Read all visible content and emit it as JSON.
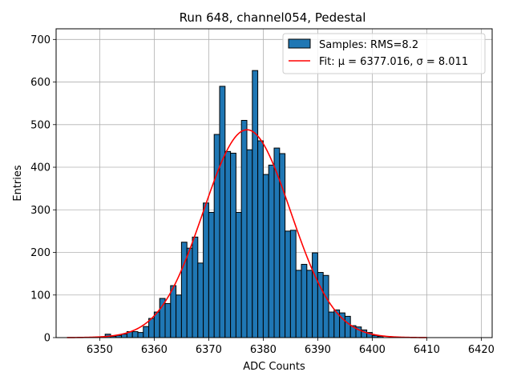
{
  "chart_data": {
    "type": "bar",
    "title": "Run 648, channel054, Pedestal",
    "xlabel": "ADC Counts",
    "ylabel": "Entries",
    "xlim": [
      6342,
      6422
    ],
    "ylim": [
      0,
      725
    ],
    "xticks": [
      6350,
      6360,
      6370,
      6380,
      6390,
      6400,
      6410,
      6420
    ],
    "yticks": [
      0,
      100,
      200,
      300,
      400,
      500,
      600,
      700
    ],
    "grid": true,
    "legend_position": "top-right",
    "bin_width": 1,
    "series": [
      {
        "name": "Samples: RMS=8.2",
        "kind": "histogram",
        "color": "#1f77b4",
        "edge_color": "#000000",
        "bin_starts": [
          6351,
          6352,
          6353,
          6354,
          6355,
          6356,
          6357,
          6358,
          6359,
          6360,
          6361,
          6362,
          6363,
          6364,
          6365,
          6366,
          6367,
          6368,
          6369,
          6370,
          6371,
          6372,
          6373,
          6374,
          6375,
          6376,
          6377,
          6378,
          6379,
          6380,
          6381,
          6382,
          6383,
          6384,
          6385,
          6386,
          6387,
          6388,
          6389,
          6390,
          6391,
          6392,
          6393,
          6394,
          6395,
          6396,
          6397,
          6398,
          6399,
          6400,
          6401
        ],
        "values": [
          8,
          3,
          5,
          8,
          14,
          14,
          12,
          26,
          45,
          60,
          92,
          80,
          122,
          100,
          224,
          210,
          236,
          175,
          316,
          294,
          477,
          590,
          437,
          433,
          294,
          510,
          441,
          627,
          462,
          383,
          405,
          445,
          432,
          250,
          252,
          158,
          172,
          158,
          199,
          153,
          146,
          60,
          65,
          58,
          50,
          28,
          25,
          18,
          12,
          5,
          3
        ]
      },
      {
        "name": "Fit: μ = 6377.016, σ = 8.011",
        "kind": "gaussian",
        "color": "#ff0000",
        "mu": 6377.016,
        "sigma": 8.011,
        "amplitude": 488,
        "x_range": [
          6344,
          6410
        ]
      }
    ]
  }
}
